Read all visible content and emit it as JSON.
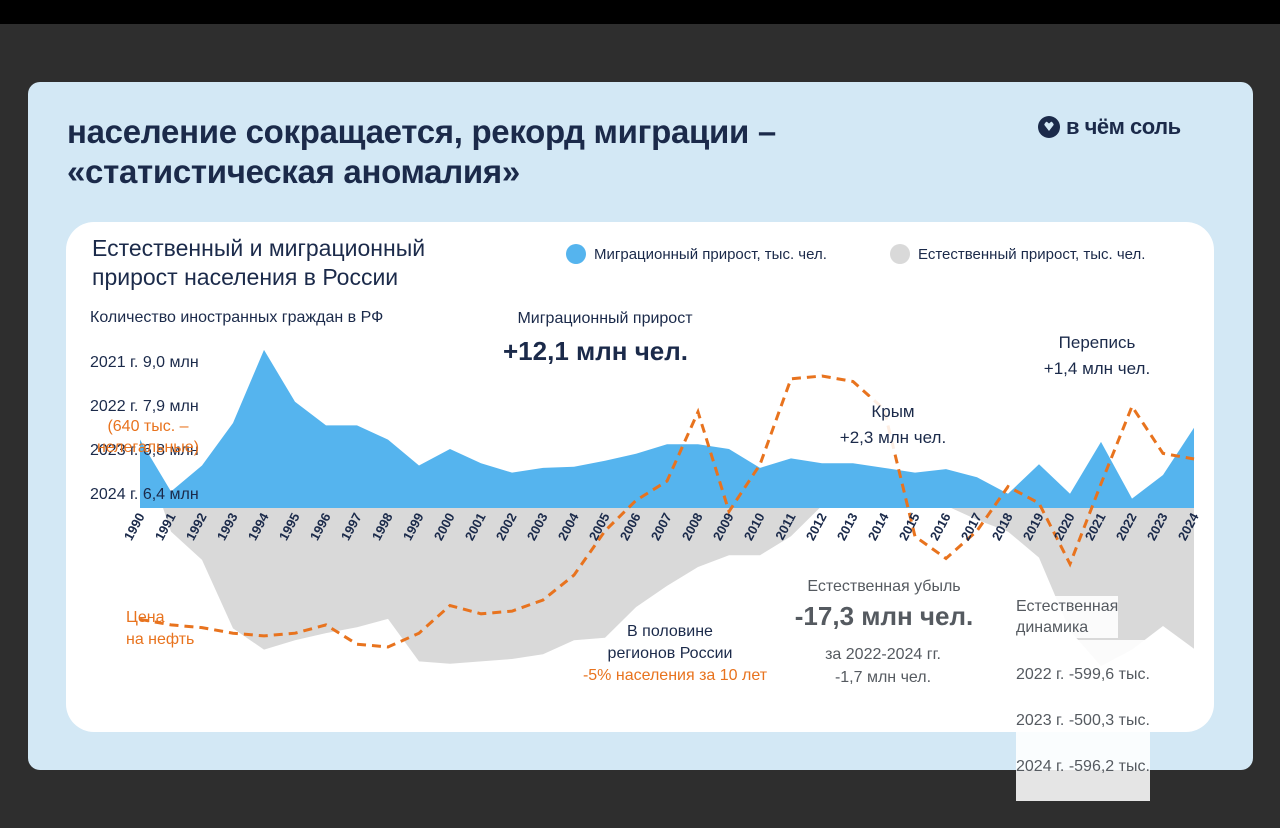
{
  "header": {
    "headline": "население сокращается, рекорд миграции –\n«статистическая аномалия»",
    "logo_text": "в чём соль"
  },
  "colors": {
    "background": "#2e2e2e",
    "card": "#d3e8f5",
    "panel": "#ffffff",
    "migration": "#55b4ee",
    "natural": "#d9d9d9",
    "oil": "#e8731e",
    "text": "#1b2a4a"
  },
  "chart": {
    "title": "Естественный и миграционный\nприрост населения в России",
    "legend": [
      {
        "label": "Миграционный прирост, тыс. чел.",
        "color": "#55b4ee"
      },
      {
        "label": "Естественный прирост, тыс. чел.",
        "color": "#d9d9d9"
      }
    ]
  },
  "annotations": {
    "foreigners_title": "Количество иностранных граждан в РФ",
    "foreigners_lines": [
      "2021 г. 9,0 млн",
      "2022 г. 7,9 млн",
      "2023 г. 6,8 млн",
      "2024 г. 6,4 млн"
    ],
    "foreigners_illegal": "(640 тыс. –\nнелегальные)",
    "migration_label": "Миграционный прирост",
    "migration_value": "+12,1 млн чел.",
    "crimea": "Крым\n+2,3 млн чел.",
    "census": "Перепись\n+1,4 млн чел.",
    "oil_label": "Цена\nна нефть",
    "regions_line1": "В половине\nрегионов России",
    "regions_line2": "-5% населения за 10 лет",
    "natural_loss_label": "Естественная убыль",
    "natural_loss_value": "-17,3 млн чел.",
    "natural_loss_period": "за 2022-2024 гг.\n-1,7 млн чел.",
    "natural_dynamics_title": "Естественная\nдинамика",
    "natural_dynamics_lines": [
      "2022 г. -599,6 тыс.",
      "2023 г. -500,3 тыс.",
      "2024 г. -596,2 тыс."
    ]
  },
  "chart_data": {
    "type": "area",
    "categories": [
      "1990",
      "1991",
      "1992",
      "1993",
      "1994",
      "1995",
      "1996",
      "1997",
      "1998",
      "1999",
      "2000",
      "2001",
      "2002",
      "2003",
      "2004",
      "2005",
      "2006",
      "2007",
      "2008",
      "2009",
      "2010",
      "2011",
      "2012",
      "2013",
      "2014",
      "2015",
      "2016",
      "2017",
      "2018",
      "2019",
      "2020",
      "2021",
      "2022",
      "2023",
      "2024"
    ],
    "series": [
      {
        "name": "Миграционный прирост, тыс. чел.",
        "values": [
          290,
          70,
          180,
          360,
          670,
          450,
          350,
          350,
          290,
          180,
          250,
          190,
          150,
          170,
          175,
          200,
          230,
          270,
          270,
          250,
          170,
          210,
          190,
          190,
          170,
          150,
          165,
          130,
          60,
          185,
          60,
          280,
          40,
          140,
          340
        ]
      },
      {
        "name": "Естественный прирост, тыс. чел.",
        "values": [
          290,
          -100,
          -220,
          -510,
          -600,
          -560,
          -530,
          -505,
          -470,
          -650,
          -660,
          -650,
          -640,
          -620,
          -560,
          -550,
          -420,
          -330,
          -250,
          -200,
          -200,
          -120,
          10,
          20,
          30,
          40,
          10,
          -50,
          -100,
          -210,
          -520,
          -670,
          -600,
          -500,
          -596
        ]
      },
      {
        "name": "Цена на нефть",
        "values": [
          22,
          20,
          19,
          17,
          16,
          17,
          20,
          13,
          12,
          17,
          27,
          24,
          25,
          29,
          38,
          54,
          65,
          72,
          97,
          61,
          78,
          109,
          110,
          108,
          98,
          52,
          44,
          54,
          70,
          64,
          42,
          71,
          99,
          82,
          80
        ]
      }
    ],
    "ylim": [
      -700,
      700
    ],
    "grid": false,
    "legend_position": "top-right"
  }
}
